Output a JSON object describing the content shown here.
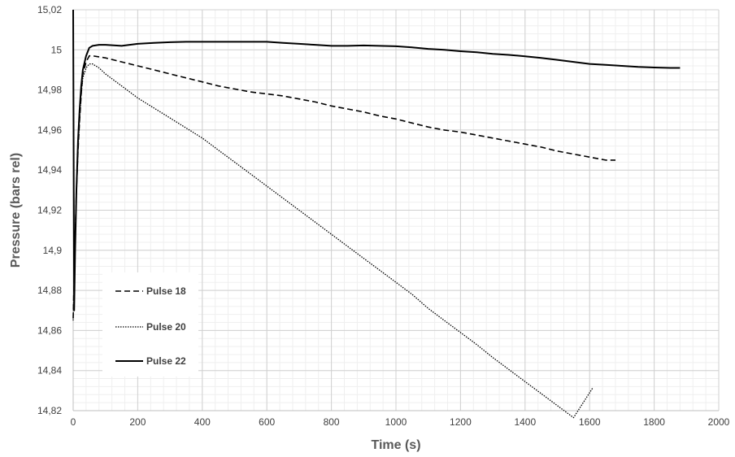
{
  "chart_data": {
    "type": "line",
    "title": "",
    "xlabel": "Time (s)",
    "ylabel": "Pressure (bars rel)",
    "xlim": [
      0,
      2000
    ],
    "ylim": [
      14.82,
      15.02
    ],
    "x_ticks": [
      0,
      200,
      400,
      600,
      800,
      1000,
      1200,
      1400,
      1600,
      1800,
      2000
    ],
    "x_tick_labels": [
      "0",
      "200",
      "400",
      "600",
      "800",
      "1000",
      "1200",
      "1400",
      "1600",
      "1800",
      "2000"
    ],
    "y_ticks": [
      14.82,
      14.84,
      14.86,
      14.88,
      14.9,
      14.92,
      14.94,
      14.96,
      14.98,
      15.0,
      15.02
    ],
    "y_tick_labels": [
      "14,82",
      "14,84",
      "14,86",
      "14,88",
      "14,9",
      "14,92",
      "14,94",
      "14,96",
      "14,98",
      "15",
      "15,02"
    ],
    "grid": true,
    "minor_grid": true,
    "legend_position": "bottom-left",
    "series": [
      {
        "name": "Pulse 18",
        "style": "dashed",
        "color": "#000000",
        "x": [
          0,
          5,
          10,
          15,
          20,
          25,
          30,
          40,
          50,
          60,
          80,
          100,
          150,
          200,
          250,
          300,
          350,
          400,
          450,
          500,
          550,
          600,
          650,
          700,
          750,
          800,
          850,
          900,
          950,
          1000,
          1050,
          1100,
          1150,
          1200,
          1250,
          1300,
          1350,
          1400,
          1450,
          1500,
          1550,
          1600,
          1650,
          1680
        ],
        "y": [
          14.866,
          14.9,
          14.93,
          14.95,
          14.965,
          14.978,
          14.988,
          14.994,
          14.997,
          14.997,
          14.9965,
          14.996,
          14.994,
          14.992,
          14.99,
          14.988,
          14.986,
          14.984,
          14.982,
          14.9805,
          14.979,
          14.978,
          14.977,
          14.9755,
          14.974,
          14.972,
          14.9705,
          14.969,
          14.967,
          14.9655,
          14.9635,
          14.9615,
          14.96,
          14.959,
          14.9575,
          14.956,
          14.9545,
          14.953,
          14.9515,
          14.9495,
          14.948,
          14.9465,
          14.945,
          14.945
        ]
      },
      {
        "name": "Pulse 20",
        "style": "dotted",
        "color": "#000000",
        "x": [
          0,
          5,
          10,
          15,
          20,
          25,
          30,
          40,
          50,
          60,
          80,
          100,
          150,
          200,
          250,
          300,
          350,
          400,
          450,
          500,
          550,
          600,
          650,
          700,
          750,
          800,
          850,
          900,
          950,
          1000,
          1050,
          1100,
          1150,
          1200,
          1250,
          1300,
          1350,
          1400,
          1450,
          1500,
          1550,
          1610
        ],
        "y": [
          14.865,
          14.9,
          14.93,
          14.95,
          14.965,
          14.978,
          14.986,
          14.991,
          14.993,
          14.993,
          14.991,
          14.988,
          14.982,
          14.976,
          14.971,
          14.966,
          14.961,
          14.956,
          14.95,
          14.944,
          14.938,
          14.932,
          14.926,
          14.92,
          14.914,
          14.908,
          14.902,
          14.896,
          14.89,
          14.884,
          14.878,
          14.871,
          14.865,
          14.859,
          14.853,
          14.8465,
          14.8405,
          14.8345,
          14.8285,
          14.8225,
          14.8165,
          14.8315
        ]
      },
      {
        "name": "Pulse 22",
        "style": "solid",
        "color": "#000000",
        "x": [
          0,
          3,
          6,
          10,
          15,
          20,
          25,
          30,
          40,
          50,
          60,
          80,
          100,
          150,
          200,
          250,
          300,
          350,
          400,
          450,
          500,
          550,
          600,
          650,
          700,
          750,
          800,
          850,
          900,
          950,
          1000,
          1050,
          1100,
          1150,
          1200,
          1250,
          1300,
          1350,
          1400,
          1450,
          1500,
          1550,
          1600,
          1650,
          1700,
          1750,
          1800,
          1850,
          1880
        ],
        "y": [
          15.02,
          14.87,
          14.9,
          14.93,
          14.955,
          14.97,
          14.982,
          14.99,
          14.997,
          15.001,
          15.002,
          15.0025,
          15.0025,
          15.002,
          15.003,
          15.0035,
          15.0038,
          15.004,
          15.004,
          15.004,
          15.004,
          15.004,
          15.004,
          15.0035,
          15.003,
          15.0025,
          15.002,
          15.002,
          15.0022,
          15.002,
          15.0018,
          15.0012,
          15.0005,
          15.0,
          14.9993,
          14.9988,
          14.998,
          14.9975,
          14.9968,
          14.996,
          14.995,
          14.994,
          14.993,
          14.9925,
          14.992,
          14.9915,
          14.9912,
          14.991,
          14.991
        ]
      }
    ]
  }
}
